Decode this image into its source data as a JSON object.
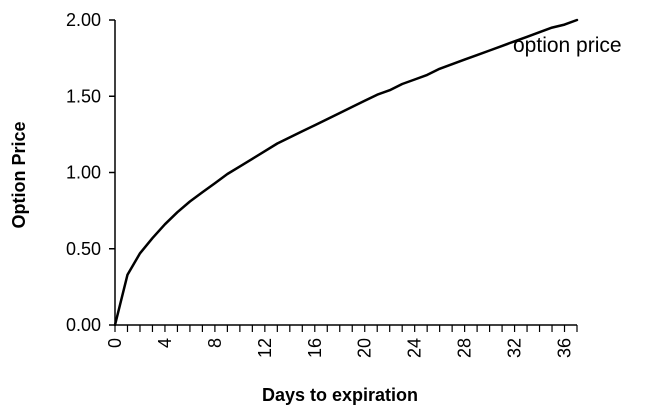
{
  "chart_data": {
    "type": "line",
    "title": "",
    "xlabel": "Days to expiration",
    "ylabel": "Option Price",
    "xlim": [
      0,
      37
    ],
    "ylim": [
      0,
      2
    ],
    "grid": false,
    "x_ticks": [
      "0",
      "4",
      "8",
      "12",
      "16",
      "20",
      "24",
      "28",
      "32",
      "36"
    ],
    "x_tick_values": [
      0,
      4,
      8,
      12,
      16,
      20,
      24,
      28,
      32,
      36
    ],
    "y_ticks": [
      "0.00",
      "0.50",
      "1.00",
      "1.50",
      "2.00"
    ],
    "y_tick_values": [
      0,
      0.5,
      1,
      1.5,
      2
    ],
    "series": [
      {
        "name": "option price",
        "color": "#000000",
        "x": [
          0,
          1,
          2,
          3,
          4,
          5,
          6,
          7,
          8,
          9,
          10,
          11,
          12,
          13,
          14,
          15,
          16,
          17,
          18,
          19,
          20,
          21,
          22,
          23,
          24,
          25,
          26,
          27,
          28,
          29,
          30,
          31,
          32,
          33,
          34,
          35,
          36,
          37
        ],
        "y": [
          0.0,
          0.33,
          0.47,
          0.57,
          0.66,
          0.74,
          0.81,
          0.87,
          0.93,
          0.99,
          1.04,
          1.09,
          1.14,
          1.19,
          1.23,
          1.27,
          1.31,
          1.35,
          1.39,
          1.43,
          1.47,
          1.51,
          1.54,
          1.58,
          1.61,
          1.64,
          1.68,
          1.71,
          1.74,
          1.77,
          1.8,
          1.83,
          1.86,
          1.89,
          1.92,
          1.95,
          1.97,
          2.0
        ]
      }
    ]
  }
}
